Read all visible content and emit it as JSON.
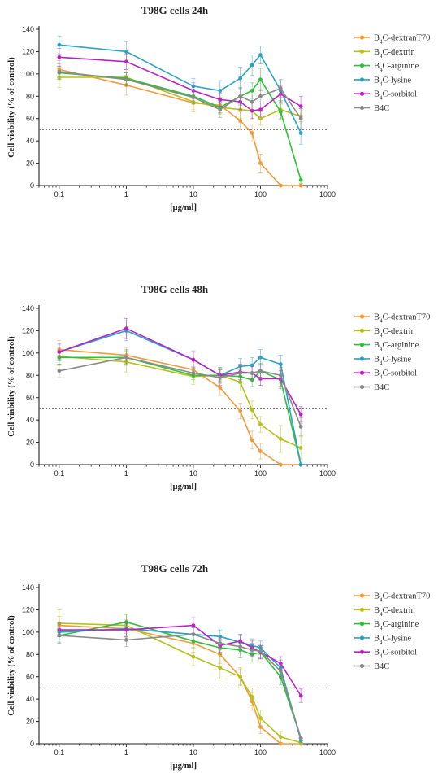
{
  "chart_data": [
    {
      "type": "line",
      "title": "T98G cells 24h",
      "xlabel": "[µg/ml]",
      "ylabel": "Cell viability (% of control)",
      "xscale": "log",
      "xlim": [
        0.05,
        1000
      ],
      "ylim": [
        0,
        140
      ],
      "xticks": [
        "0.1",
        "1",
        "10",
        "100",
        "1000"
      ],
      "yticks": [
        "0",
        "20",
        "40",
        "60",
        "80",
        "100",
        "120",
        "140"
      ],
      "reference_line": 50,
      "legend_position": "right",
      "series": [
        {
          "name": "B4C-dextranT70",
          "label_pre": "B",
          "label_sub": "4",
          "label_post": "C-dextranT70",
          "color": "#f39a3a",
          "x": [
            0.1,
            1,
            10,
            25,
            50,
            75,
            100,
            200,
            400
          ],
          "y": [
            104,
            90,
            74,
            72,
            58,
            47,
            20,
            0,
            0
          ],
          "err": [
            8,
            9,
            8,
            7,
            8,
            8,
            8,
            0,
            0
          ]
        },
        {
          "name": "B4C-dextrin",
          "label_pre": "B",
          "label_sub": "4",
          "label_post": "C-dextrin",
          "color": "#b5c21a",
          "x": [
            0.1,
            1,
            10,
            25,
            50,
            75,
            100,
            200,
            400
          ],
          "y": [
            97,
            97,
            75,
            70,
            68,
            67,
            60,
            68,
            62
          ],
          "err": [
            9,
            7,
            7,
            6,
            8,
            8,
            6,
            8,
            7
          ]
        },
        {
          "name": "B4C-arginine",
          "label_pre": "B",
          "label_sub": "4",
          "label_post": "C-arginine",
          "color": "#2fbf3a",
          "x": [
            0.1,
            1,
            10,
            25,
            50,
            75,
            100,
            200,
            400
          ],
          "y": [
            101,
            96,
            80,
            70,
            80,
            85,
            95,
            66,
            5
          ],
          "err": [
            6,
            5,
            6,
            5,
            8,
            7,
            10,
            7,
            3
          ]
        },
        {
          "name": "B4C-lysine",
          "label_pre": "B",
          "label_sub": "4",
          "label_post": "C-lysine",
          "color": "#2aa4c2",
          "x": [
            0.1,
            1,
            10,
            25,
            50,
            75,
            100,
            200,
            400
          ],
          "y": [
            126,
            120,
            89,
            85,
            96,
            108,
            117,
            85,
            47
          ],
          "err": [
            8,
            9,
            7,
            9,
            10,
            9,
            8,
            9,
            10
          ]
        },
        {
          "name": "B4C-sorbitol",
          "label_pre": "B",
          "label_sub": "4",
          "label_post": "C-sorbitol",
          "color": "#bb22c4",
          "x": [
            0.1,
            1,
            10,
            25,
            50,
            75,
            100,
            200,
            400
          ],
          "y": [
            115,
            111,
            85,
            77,
            75,
            67,
            68,
            82,
            71
          ],
          "err": [
            8,
            7,
            7,
            6,
            7,
            7,
            6,
            7,
            9
          ]
        },
        {
          "name": "B4C",
          "label_pre": "B4C",
          "label_sub": "",
          "label_post": "",
          "color": "#8a8a8a",
          "x": [
            0.1,
            1,
            10,
            25,
            50,
            75,
            100,
            200,
            400
          ],
          "y": [
            102,
            95,
            79,
            68,
            80,
            75,
            80,
            87,
            60
          ],
          "err": [
            7,
            6,
            6,
            7,
            7,
            7,
            6,
            8,
            9
          ]
        }
      ]
    },
    {
      "type": "line",
      "title": "T98G cells 48h",
      "xlabel": "[µg/ml]",
      "ylabel": "Cell viability (% of control)",
      "xscale": "log",
      "xlim": [
        0.05,
        1000
      ],
      "ylim": [
        0,
        140
      ],
      "xticks": [
        "0.1",
        "1",
        "10",
        "100",
        "1000"
      ],
      "yticks": [
        "0",
        "20",
        "40",
        "60",
        "80",
        "100",
        "120",
        "140"
      ],
      "reference_line": 50,
      "legend_position": "right",
      "series": [
        {
          "name": "B4C-dextranT70",
          "label_pre": "B",
          "label_sub": "4",
          "label_post": "C-dextranT70",
          "color": "#f39a3a",
          "x": [
            0.1,
            1,
            10,
            25,
            50,
            75,
            100,
            200,
            400
          ],
          "y": [
            103,
            98,
            85,
            69,
            48,
            22,
            12,
            0,
            0
          ],
          "err": [
            8,
            7,
            7,
            7,
            7,
            8,
            7,
            0,
            0
          ]
        },
        {
          "name": "B4C-dextrin",
          "label_pre": "B",
          "label_sub": "4",
          "label_post": "C-dextrin",
          "color": "#b5c21a",
          "x": [
            0.1,
            1,
            10,
            25,
            50,
            75,
            100,
            200,
            400
          ],
          "y": [
            97,
            92,
            79,
            80,
            74,
            49,
            36,
            23,
            15
          ],
          "err": [
            8,
            9,
            7,
            7,
            8,
            8,
            7,
            12,
            10
          ]
        },
        {
          "name": "B4C-arginine",
          "label_pre": "B",
          "label_sub": "4",
          "label_post": "C-arginine",
          "color": "#2fbf3a",
          "x": [
            0.1,
            1,
            10,
            25,
            50,
            75,
            100,
            200,
            400
          ],
          "y": [
            96,
            96,
            80,
            80,
            79,
            76,
            84,
            76,
            0
          ],
          "err": [
            6,
            6,
            6,
            5,
            6,
            6,
            6,
            8,
            0
          ]
        },
        {
          "name": "B4C-lysine",
          "label_pre": "B",
          "label_sub": "4",
          "label_post": "C-lysine",
          "color": "#2aa4c2",
          "x": [
            0.1,
            1,
            10,
            25,
            50,
            75,
            100,
            200,
            400
          ],
          "y": [
            101,
            120,
            94,
            80,
            88,
            89,
            96,
            90,
            0
          ],
          "err": [
            8,
            9,
            8,
            7,
            7,
            7,
            7,
            8,
            0
          ]
        },
        {
          "name": "B4C-sorbitol",
          "label_pre": "B",
          "label_sub": "4",
          "label_post": "C-sorbitol",
          "color": "#bb22c4",
          "x": [
            0.1,
            1,
            10,
            25,
            50,
            75,
            100,
            200,
            400
          ],
          "y": [
            101,
            122,
            94,
            80,
            83,
            82,
            77,
            77,
            45
          ],
          "err": [
            7,
            9,
            7,
            6,
            7,
            6,
            6,
            7,
            7
          ]
        },
        {
          "name": "B4C",
          "label_pre": "B4C",
          "label_sub": "",
          "label_post": "",
          "color": "#8a8a8a",
          "x": [
            0.1,
            1,
            10,
            25,
            50,
            75,
            100,
            200,
            400
          ],
          "y": [
            84,
            96,
            82,
            78,
            82,
            82,
            84,
            80,
            34
          ],
          "err": [
            6,
            7,
            6,
            7,
            6,
            6,
            7,
            7,
            8
          ]
        }
      ]
    },
    {
      "type": "line",
      "title": "T98G cells 72h",
      "xlabel": "[µg/ml]",
      "ylabel": "Cell viability (% of control)",
      "xscale": "log",
      "xlim": [
        0.05,
        1000
      ],
      "ylim": [
        0,
        140
      ],
      "xticks": [
        "0.1",
        "1",
        "10",
        "100",
        "1000"
      ],
      "yticks": [
        "0",
        "20",
        "40",
        "60",
        "80",
        "100",
        "120",
        "140"
      ],
      "reference_line": 50,
      "legend_position": "right",
      "series": [
        {
          "name": "B4C-dextranT70",
          "label_pre": "B",
          "label_sub": "4",
          "label_post": "C-dextranT70",
          "color": "#f39a3a",
          "x": [
            0.1,
            1,
            10,
            25,
            50,
            75,
            100,
            200,
            400
          ],
          "y": [
            106,
            103,
            90,
            80,
            60,
            38,
            15,
            0,
            0
          ],
          "err": [
            8,
            8,
            8,
            8,
            7,
            8,
            6,
            0,
            0
          ]
        },
        {
          "name": "B4C-dextrin",
          "label_pre": "B",
          "label_sub": "4",
          "label_post": "C-dextrin",
          "color": "#b5c21a",
          "x": [
            0.1,
            1,
            10,
            25,
            50,
            75,
            100,
            200,
            400
          ],
          "y": [
            108,
            106,
            78,
            68,
            60,
            42,
            23,
            6,
            1
          ],
          "err": [
            12,
            10,
            8,
            10,
            8,
            8,
            7,
            5,
            2
          ]
        },
        {
          "name": "B4C-arginine",
          "label_pre": "B",
          "label_sub": "4",
          "label_post": "C-arginine",
          "color": "#2fbf3a",
          "x": [
            0.1,
            1,
            10,
            25,
            50,
            75,
            100,
            200,
            400
          ],
          "y": [
            97,
            109,
            92,
            86,
            84,
            80,
            82,
            60,
            5
          ],
          "err": [
            7,
            7,
            6,
            6,
            7,
            7,
            6,
            7,
            2
          ]
        },
        {
          "name": "B4C-lysine",
          "label_pre": "B",
          "label_sub": "4",
          "label_post": "C-lysine",
          "color": "#2aa4c2",
          "x": [
            0.1,
            1,
            10,
            25,
            50,
            75,
            100,
            200,
            400
          ],
          "y": [
            100,
            103,
            98,
            96,
            91,
            88,
            86,
            68,
            3
          ],
          "err": [
            7,
            6,
            6,
            6,
            6,
            6,
            6,
            7,
            2
          ]
        },
        {
          "name": "B4C-sorbitol",
          "label_pre": "B",
          "label_sub": "4",
          "label_post": "C-sorbitol",
          "color": "#bb22c4",
          "x": [
            0.1,
            1,
            10,
            25,
            50,
            75,
            100,
            200,
            400
          ],
          "y": [
            102,
            102,
            106,
            88,
            92,
            86,
            82,
            72,
            43
          ],
          "err": [
            6,
            6,
            7,
            6,
            6,
            6,
            6,
            6,
            6
          ]
        },
        {
          "name": "B4C",
          "label_pre": "B4C",
          "label_sub": "",
          "label_post": "",
          "color": "#8a8a8a",
          "x": [
            0.1,
            1,
            10,
            25,
            50,
            75,
            100,
            200,
            400
          ],
          "y": [
            97,
            93,
            98,
            90,
            87,
            84,
            83,
            65,
            5
          ],
          "err": [
            6,
            6,
            6,
            6,
            6,
            6,
            6,
            6,
            2
          ]
        }
      ]
    }
  ]
}
